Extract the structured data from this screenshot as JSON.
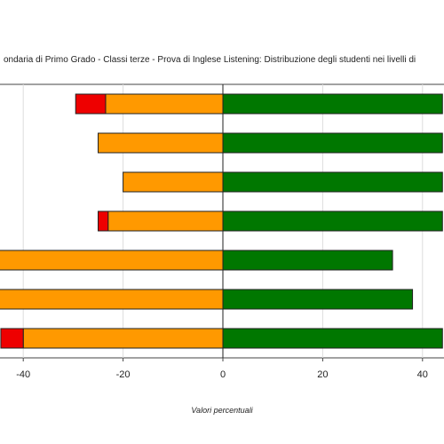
{
  "chart_data": {
    "type": "bar",
    "orientation": "horizontal",
    "stacked": "diverging",
    "title": "ondaria di Primo Grado - Classi terze - Prova di Inglese Listening: Distribuzione degli studenti nei livelli di",
    "xlabel": "Valori percentuali",
    "ylabel": "",
    "xlim": [
      -47,
      44
    ],
    "xticks": [
      -40,
      -20,
      0,
      20,
      40
    ],
    "grid": true,
    "legend": "none",
    "rows": 7,
    "series": [
      {
        "color": "#ee0000",
        "side": "negative",
        "values": [
          -6,
          0,
          0,
          -2,
          0,
          0,
          -4.5
        ]
      },
      {
        "color": "#ff9900",
        "side": "negative",
        "values": [
          -23.5,
          -25,
          -20,
          -23,
          -47,
          -47,
          -40
        ]
      },
      {
        "color": "#007700",
        "side": "positive",
        "values": [
          44,
          44,
          44,
          44,
          34,
          38,
          44
        ]
      }
    ]
  }
}
